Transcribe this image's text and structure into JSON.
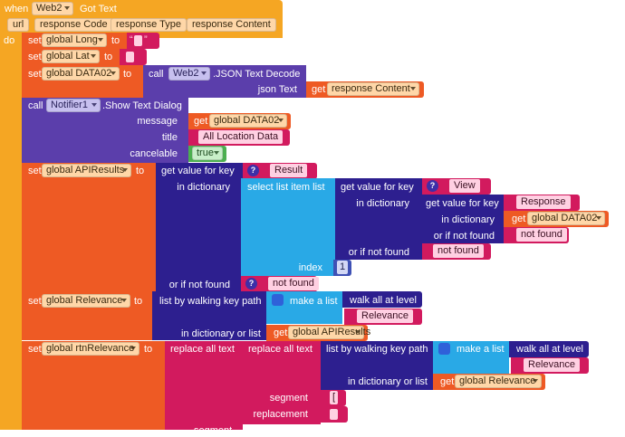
{
  "event": {
    "when": "when",
    "component": "Web2",
    "event_name": "Got Text",
    "params": [
      "url",
      "response Code",
      "response Type",
      "response Content"
    ],
    "do": "do"
  },
  "kw": {
    "set": "set",
    "to": "to",
    "call": "call",
    "get": "get"
  },
  "set_long": {
    "var": "global Long"
  },
  "set_lat": {
    "var": "global Lat"
  },
  "set_data02": {
    "var": "global DATA02",
    "component": "Web2",
    "method": ".JSON Text Decode",
    "param_label": "json Text",
    "get_var": "response Content"
  },
  "notifier": {
    "component": "Notifier1",
    "method": ".Show Text Dialog",
    "message_label": "message",
    "message_var": "global DATA02",
    "title_label": "title",
    "title_value": "All Location Data",
    "cancelable_label": "cancelable",
    "cancelable_value": "true"
  },
  "apiresults": {
    "var": "global APIResults",
    "gvfk_label": "get value for key",
    "key1": "Result",
    "in_dict_label": "in dictionary",
    "select_label": "select list item  list",
    "key2": "View",
    "key3": "Response",
    "get_var": "global DATA02",
    "if_not_found_label": "or if not found",
    "not_found_1": "not found",
    "not_found_2": "not found",
    "index_label": "index",
    "index_value": "1",
    "not_found_3": "not found"
  },
  "relevance": {
    "var": "global Relevance",
    "walk_label": "list by walking key path",
    "make_list_label": "make a list",
    "walk_all_label": "walk all at level",
    "item_value": "Relevance",
    "in_dict_or_list_label": "in dictionary or list",
    "get_var": "global APIResults"
  },
  "rtn": {
    "var": "global rtnRelevance",
    "replace_label": "replace all text",
    "walk_label": "list by walking key path",
    "make_list_label": "make a list",
    "walk_all_label": "walk all at level",
    "item_value": "Relevance",
    "in_dict_or_list_label": "in dictionary or list",
    "get_var": "global Relevance",
    "segment_label": "segment",
    "segment_value": "[",
    "replacement_label": "replacement",
    "segment_label_2": "segment"
  },
  "colors": {
    "event": "#f5a623",
    "variable": "#ee5a24",
    "component": "#5b3eab",
    "dictionary": "#2d1f8f",
    "list": "#29a9e6",
    "text": "#d21a5e",
    "logic": "#4caf50",
    "math": "#3f51b5"
  }
}
